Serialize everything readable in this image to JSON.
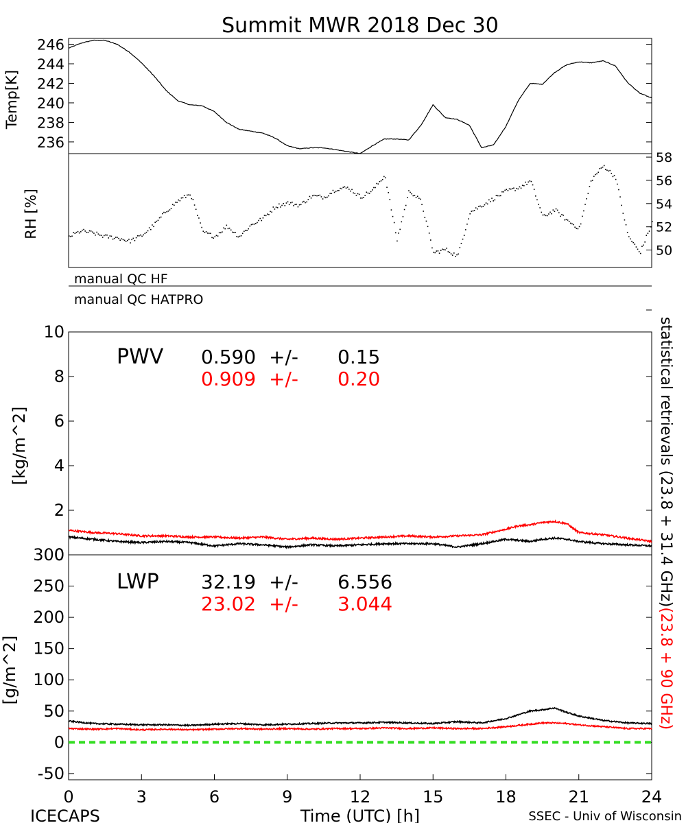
{
  "title": "Summit MWR 2018 Dec 30",
  "footer": {
    "left": "ICECAPS",
    "center": "Time (UTC) [h]",
    "right": "SSEC - Univ of Wisconsin"
  },
  "colors": {
    "series_black": "#000000",
    "series_red": "#ff0000",
    "zero_line": "#33dd22"
  },
  "qc": {
    "hf_label": "manual QC HF",
    "hatpro_label": "manual QC HATPRO"
  },
  "side_label": {
    "black_part": "statistical retrievals (23.8 + 31.4 GHz)",
    "red_part": "(23.8 + 90 GHz)"
  },
  "stats": {
    "pwv": {
      "label": "PWV",
      "black": {
        "mean": "0.590",
        "pm": "+/-",
        "sd": "0.15"
      },
      "red": {
        "mean": "0.909",
        "pm": "+/-",
        "sd": "0.20"
      }
    },
    "lwp": {
      "label": "LWP",
      "black": {
        "mean": "32.19",
        "pm": "+/-",
        "sd": "6.556"
      },
      "red": {
        "mean": "23.02",
        "pm": "+/-",
        "sd": "3.044"
      }
    }
  },
  "chart_data": [
    {
      "id": "temp",
      "type": "line",
      "ylabel": "Temp[K]",
      "xlim": [
        0,
        24
      ],
      "ylim": [
        234.8,
        246.6
      ],
      "yticks": [
        236,
        238,
        240,
        242,
        244,
        246
      ],
      "yaxis_side": "left",
      "series": [
        {
          "color": "#000000",
          "x": [
            0,
            0.5,
            1,
            1.5,
            2,
            2.5,
            3,
            3.5,
            4,
            4.5,
            5,
            5.5,
            6,
            6.5,
            7,
            7.5,
            8,
            8.5,
            9,
            9.5,
            10,
            10.5,
            11,
            11.5,
            12,
            12.5,
            13,
            13.5,
            14,
            14.5,
            15,
            15.5,
            16,
            16.5,
            17,
            17.5,
            18,
            18.5,
            19,
            19.5,
            20,
            20.5,
            21,
            21.5,
            22,
            22.5,
            23,
            23.5,
            24
          ],
          "values": [
            245.6,
            246.1,
            246.4,
            246.4,
            246.0,
            245.2,
            244.1,
            242.8,
            241.3,
            240.2,
            239.8,
            239.7,
            239.1,
            238.0,
            237.3,
            237.1,
            236.9,
            236.4,
            235.6,
            235.3,
            235.4,
            235.4,
            235.2,
            235.0,
            234.8,
            235.6,
            236.3,
            236.3,
            236.2,
            237.7,
            239.8,
            238.5,
            238.3,
            237.7,
            235.4,
            235.7,
            237.6,
            240.2,
            242.0,
            241.9,
            243.1,
            243.9,
            244.2,
            244.1,
            244.3,
            243.8,
            242.1,
            241.0,
            240.5
          ]
        }
      ]
    },
    {
      "id": "rh",
      "type": "scatter",
      "ylabel": "RH [%]",
      "xlim": [
        0,
        24
      ],
      "ylim": [
        48.5,
        58.3
      ],
      "yticks": [
        50,
        52,
        54,
        56,
        58
      ],
      "yaxis_side": "right",
      "series": [
        {
          "color": "#000000",
          "x": [
            0,
            0.5,
            1,
            1.5,
            2,
            2.5,
            3,
            3.5,
            4,
            4.5,
            5,
            5.5,
            6,
            6.5,
            7,
            7.5,
            8,
            8.5,
            9,
            9.5,
            10,
            10.5,
            11,
            11.5,
            12,
            12.5,
            13,
            13.5,
            14,
            14.5,
            15,
            15.5,
            16,
            16.5,
            17,
            17.5,
            18,
            18.5,
            19,
            19.5,
            20,
            20.5,
            21,
            21.5,
            22,
            22.5,
            23,
            23.5,
            24
          ],
          "values": [
            51.2,
            51.7,
            51.5,
            51.2,
            51.1,
            50.8,
            51.3,
            52.2,
            53.4,
            54.3,
            54.9,
            51.6,
            51.2,
            52.1,
            51.2,
            52.2,
            52.8,
            53.8,
            54.1,
            53.9,
            54.7,
            54.6,
            55.3,
            55.4,
            54.6,
            55.2,
            56.5,
            50.9,
            55.2,
            54.2,
            49.8,
            50.1,
            49.5,
            53.3,
            53.9,
            54.5,
            55.1,
            55.4,
            56.0,
            52.9,
            53.5,
            52.6,
            51.9,
            56.1,
            57.3,
            56.3,
            51.3,
            49.8,
            52.4
          ]
        }
      ]
    },
    {
      "id": "pwv",
      "type": "line",
      "ylabel": "[kg/m^2]",
      "xlim": [
        0,
        24
      ],
      "ylim": [
        0,
        10
      ],
      "yticks": [
        0,
        2,
        4,
        6,
        8,
        10
      ],
      "yaxis_side": "left",
      "series": [
        {
          "color": "#ff0000",
          "x": [
            0,
            1,
            2,
            3,
            4,
            5,
            6,
            7,
            8,
            9,
            10,
            11,
            12,
            13,
            14,
            15,
            16,
            17,
            18,
            18.5,
            19,
            19.5,
            20,
            20.5,
            21,
            22,
            23,
            24
          ],
          "values": [
            1.1,
            1.0,
            0.95,
            0.85,
            0.85,
            0.8,
            0.8,
            0.75,
            0.8,
            0.7,
            0.75,
            0.7,
            0.75,
            0.8,
            0.85,
            0.8,
            0.85,
            0.9,
            1.15,
            1.3,
            1.35,
            1.45,
            1.5,
            1.4,
            1.0,
            0.9,
            0.75,
            0.6
          ]
        },
        {
          "color": "#000000",
          "x": [
            0,
            1,
            2,
            3,
            4,
            5,
            6,
            7,
            8,
            9,
            10,
            11,
            12,
            13,
            14,
            15,
            16,
            17,
            18,
            18.5,
            19,
            19.5,
            20,
            20.5,
            21,
            22,
            23,
            24
          ],
          "values": [
            0.8,
            0.7,
            0.6,
            0.55,
            0.6,
            0.55,
            0.4,
            0.5,
            0.45,
            0.35,
            0.45,
            0.4,
            0.45,
            0.5,
            0.5,
            0.5,
            0.35,
            0.5,
            0.7,
            0.65,
            0.6,
            0.7,
            0.75,
            0.7,
            0.6,
            0.5,
            0.45,
            0.4
          ]
        }
      ]
    },
    {
      "id": "lwp",
      "type": "line",
      "ylabel": "[g/m^2]",
      "xlabel": "Time (UTC) [h]",
      "xlim": [
        0,
        24
      ],
      "ylim": [
        -60,
        300
      ],
      "yticks": [
        -50,
        0,
        50,
        100,
        150,
        200,
        250,
        300
      ],
      "xticks": [
        0,
        3,
        6,
        9,
        12,
        15,
        18,
        21,
        24
      ],
      "yaxis_side": "left",
      "series": [
        {
          "color": "#000000",
          "x": [
            0,
            1,
            2,
            3,
            4,
            5,
            6,
            7,
            8,
            9,
            10,
            11,
            12,
            13,
            14,
            15,
            16,
            17,
            18,
            18.5,
            19,
            19.5,
            20,
            20.5,
            21,
            22,
            23,
            24
          ],
          "values": [
            34,
            30,
            29,
            28,
            28,
            27,
            29,
            30,
            28,
            29,
            30,
            31,
            31,
            32,
            31,
            30,
            33,
            31,
            38,
            44,
            50,
            52,
            55,
            48,
            42,
            35,
            31,
            30
          ]
        },
        {
          "color": "#ff0000",
          "x": [
            0,
            1,
            2,
            3,
            4,
            5,
            6,
            7,
            8,
            9,
            10,
            11,
            12,
            13,
            14,
            15,
            16,
            17,
            18,
            18.5,
            19,
            19.5,
            20,
            20.5,
            21,
            22,
            23,
            24
          ],
          "values": [
            22,
            21,
            22,
            20,
            21,
            20,
            21,
            22,
            21,
            22,
            21,
            22,
            22,
            23,
            22,
            23,
            22,
            22,
            25,
            27,
            29,
            31,
            31,
            30,
            28,
            25,
            22,
            22
          ]
        },
        {
          "color": "#33dd22",
          "dashed": true,
          "x": [
            0,
            24
          ],
          "values": [
            0,
            0
          ]
        }
      ]
    }
  ]
}
